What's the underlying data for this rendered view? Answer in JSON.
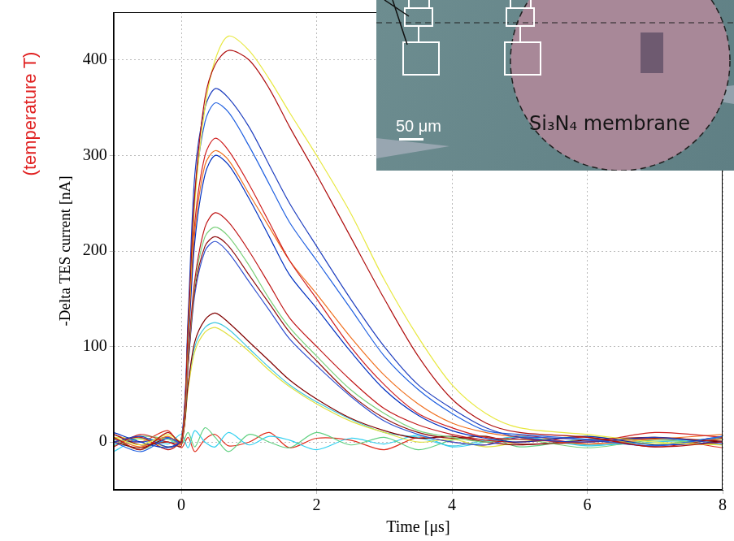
{
  "chart_data": {
    "type": "line",
    "x_label": "Time [μs]",
    "y_label": "-Delta TES current [nA]",
    "x": [
      -1,
      -0.6,
      -0.2,
      0,
      0.1,
      0.2,
      0.35,
      0.5,
      0.7,
      1,
      1.3,
      1.6,
      2,
      2.5,
      3,
      3.5,
      4,
      4.5,
      5,
      6,
      7,
      8
    ],
    "series": [
      {
        "color": "#b01010",
        "values": [
          5,
          -8,
          10,
          0,
          120,
          260,
          360,
          395,
          410,
          400,
          370,
          330,
          280,
          215,
          150,
          90,
          45,
          20,
          10,
          5,
          -5,
          0
        ]
      },
      {
        "color": "#e8e840",
        "values": [
          5,
          -3,
          8,
          2,
          110,
          250,
          350,
          400,
          425,
          410,
          380,
          345,
          300,
          240,
          170,
          110,
          60,
          30,
          15,
          8,
          0,
          -3
        ]
      },
      {
        "color": "#1f3fbf",
        "values": [
          0,
          6,
          -5,
          3,
          130,
          280,
          350,
          370,
          360,
          330,
          290,
          250,
          205,
          150,
          100,
          60,
          35,
          15,
          5,
          0,
          5,
          -2
        ]
      },
      {
        "color": "#2060e0",
        "values": [
          0,
          -10,
          4,
          0,
          120,
          260,
          335,
          355,
          345,
          310,
          270,
          230,
          190,
          140,
          90,
          55,
          30,
          12,
          8,
          3,
          -4,
          6
        ]
      },
      {
        "color": "#d02020",
        "values": [
          -5,
          8,
          0,
          0,
          110,
          230,
          300,
          318,
          305,
          270,
          230,
          190,
          150,
          100,
          60,
          30,
          15,
          5,
          3,
          0,
          10,
          5
        ]
      },
      {
        "color": "#0030c0",
        "values": [
          10,
          0,
          -6,
          2,
          100,
          210,
          280,
          300,
          290,
          255,
          215,
          175,
          140,
          95,
          55,
          28,
          12,
          4,
          0,
          6,
          -3,
          0
        ]
      },
      {
        "color": "#f07020",
        "values": [
          4,
          -5,
          6,
          -2,
          105,
          220,
          290,
          305,
          295,
          260,
          225,
          190,
          155,
          110,
          70,
          40,
          20,
          10,
          5,
          -2,
          3,
          8
        ]
      },
      {
        "color": "#c01818",
        "values": [
          0,
          5,
          -8,
          3,
          90,
          170,
          225,
          240,
          230,
          200,
          165,
          130,
          100,
          65,
          35,
          18,
          8,
          2,
          0,
          5,
          -5,
          4
        ]
      },
      {
        "color": "#7ad07a",
        "values": [
          -4,
          6,
          3,
          0,
          85,
          165,
          215,
          225,
          215,
          185,
          150,
          120,
          90,
          55,
          30,
          12,
          5,
          0,
          3,
          -6,
          2,
          -3
        ]
      },
      {
        "color": "#901010",
        "values": [
          8,
          -3,
          0,
          -4,
          80,
          160,
          205,
          215,
          205,
          175,
          145,
          115,
          85,
          50,
          25,
          10,
          4,
          6,
          -2,
          0,
          4,
          1
        ]
      },
      {
        "color": "#3050d0",
        "values": [
          3,
          0,
          5,
          1,
          80,
          155,
          200,
          210,
          198,
          168,
          138,
          108,
          80,
          48,
          22,
          8,
          0,
          -3,
          5,
          2,
          -4,
          6
        ]
      },
      {
        "color": "#800000",
        "values": [
          0,
          -6,
          4,
          2,
          60,
          105,
          128,
          135,
          125,
          105,
          85,
          65,
          45,
          25,
          12,
          4,
          6,
          0,
          -3,
          2,
          5,
          0
        ]
      },
      {
        "color": "#e0e040",
        "values": [
          5,
          3,
          -5,
          0,
          55,
          95,
          115,
          120,
          112,
          95,
          75,
          58,
          40,
          22,
          10,
          0,
          3,
          -5,
          0,
          6,
          -2,
          3
        ]
      },
      {
        "color": "#40c8e0",
        "values": [
          -3,
          4,
          0,
          2,
          58,
          100,
          120,
          125,
          118,
          98,
          78,
          60,
          42,
          24,
          10,
          5,
          -4,
          2,
          5,
          -3,
          0,
          4
        ]
      },
      {
        "color": "#60d080",
        "values": [
          3,
          -8,
          5,
          -2,
          10,
          -5,
          15,
          5,
          -10,
          8,
          0,
          -6,
          10,
          -3,
          5,
          -8,
          2,
          6,
          -5,
          3,
          -2,
          5
        ]
      },
      {
        "color": "#30d0f0",
        "values": [
          -10,
          4,
          -2,
          8,
          -6,
          12,
          0,
          -5,
          10,
          -3,
          6,
          2,
          -8,
          4,
          -2,
          7,
          -5,
          0,
          6,
          -4,
          3,
          0
        ]
      },
      {
        "color": "#e03020",
        "values": [
          8,
          0,
          12,
          -6,
          5,
          -10,
          3,
          8,
          -4,
          0,
          10,
          -6,
          4,
          2,
          -8,
          5,
          0,
          -3,
          7,
          -2,
          4,
          -6
        ]
      }
    ],
    "xlim": [
      -1,
      8
    ],
    "xticks": [
      0,
      2,
      4,
      6,
      8
    ],
    "ylim": [
      -50,
      450
    ],
    "yticks": [
      0,
      100,
      200,
      300,
      400
    ],
    "grid": true,
    "annotations": [
      "(temperature T)",
      "50 μm",
      "Si₃N₄ membrane"
    ]
  }
}
